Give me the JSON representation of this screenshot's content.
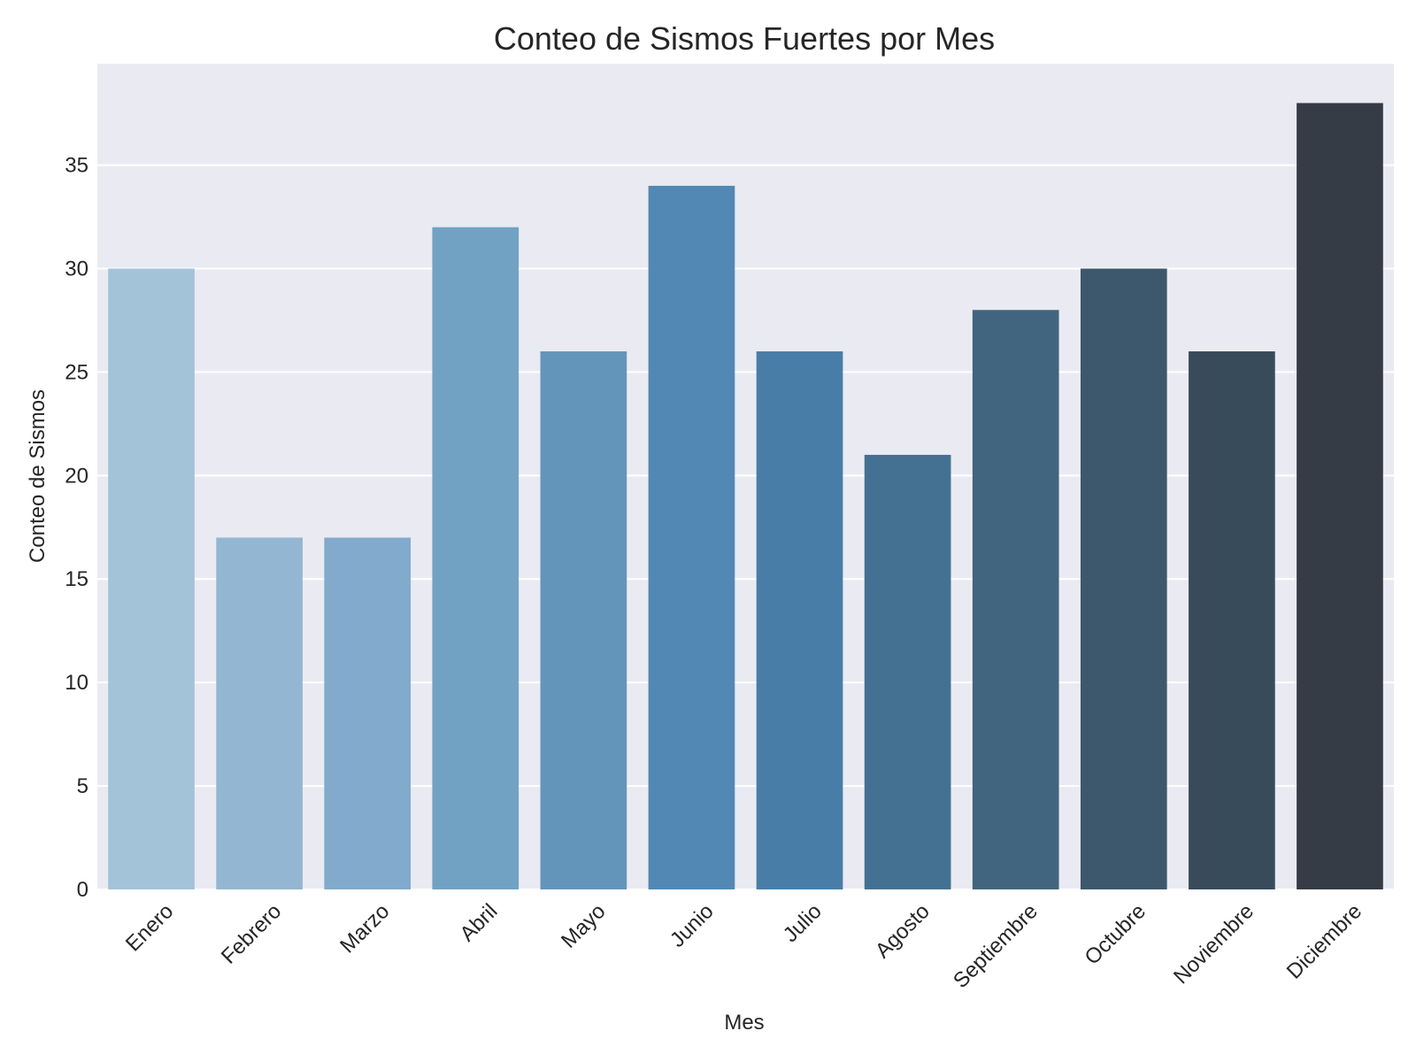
{
  "chart_data": {
    "type": "bar",
    "title": "Conteo de Sismos Fuertes por Mes",
    "xlabel": "Mes",
    "ylabel": "Conteo de Sismos",
    "categories": [
      "Enero",
      "Febrero",
      "Marzo",
      "Abril",
      "Mayo",
      "Junio",
      "Julio",
      "Agosto",
      "Septiembre",
      "Octubre",
      "Noviembre",
      "Diciembre"
    ],
    "values": [
      30,
      17,
      17,
      32,
      26,
      34,
      26,
      21,
      28,
      30,
      26,
      38
    ],
    "ylim": [
      0,
      39.9
    ],
    "yticks": [
      0,
      5,
      10,
      15,
      20,
      25,
      30,
      35
    ],
    "grid": true,
    "legend": "none",
    "colors": {
      "plot_background": "#eaeaf2",
      "grid": "#ffffff",
      "bars": [
        "#a3c3d9",
        "#93b7d2",
        "#81aacc",
        "#71a2c4",
        "#6395bb",
        "#5189b4",
        "#487da7",
        "#447192",
        "#41647f",
        "#3d586c",
        "#384b5b",
        "#363c45"
      ]
    }
  }
}
